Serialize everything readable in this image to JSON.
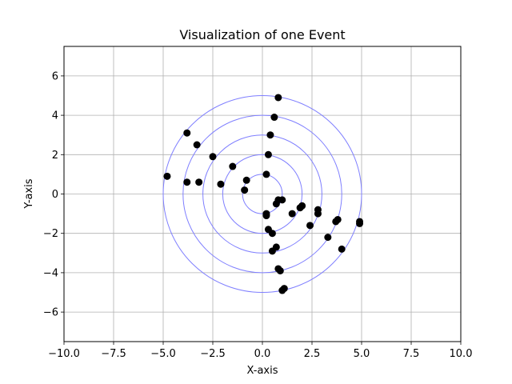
{
  "chart_data": {
    "type": "scatter",
    "title": "Visualization of one Event",
    "xlabel": "X-axis",
    "ylabel": "Y-axis",
    "xlim": [
      -10,
      10
    ],
    "ylim": [
      -7.5,
      7.5
    ],
    "xticks": [
      -10,
      -7.5,
      -5,
      -2.5,
      0,
      2.5,
      5,
      7.5,
      10
    ],
    "xtick_labels": [
      "−10.0",
      "−7.5",
      "−5.0",
      "−2.5",
      "0.0",
      "2.5",
      "5.0",
      "7.5",
      "10.0"
    ],
    "yticks": [
      -6,
      -4,
      -2,
      0,
      2,
      4,
      6
    ],
    "ytick_labels": [
      "−6",
      "−4",
      "−2",
      "0",
      "2",
      "4",
      "6"
    ],
    "grid": true,
    "circles": {
      "center": [
        0,
        0
      ],
      "radii": [
        1,
        2,
        3,
        4,
        5
      ],
      "color": "#7f7fff"
    },
    "points": {
      "color": "#000000",
      "x": [
        0.8,
        0.6,
        0.4,
        0.3,
        0.2,
        -0.8,
        -0.9,
        0.8,
        1.0,
        0.7,
        0.2,
        0.2,
        -1.5,
        -2.5,
        -2.1,
        -3.2,
        -3.8,
        -4.8,
        -3.3,
        -3.8,
        1.5,
        1.9,
        2.0,
        2.8,
        2.8,
        3.7,
        3.8,
        4.9,
        4.9,
        2.4,
        3.3,
        4.0,
        0.3,
        0.5,
        0.5,
        0.7,
        0.8,
        0.9,
        1.1,
        1.0
      ],
      "y": [
        4.9,
        3.9,
        3.0,
        2.0,
        1.0,
        0.7,
        0.2,
        -0.3,
        -0.3,
        -0.5,
        -1.0,
        -1.1,
        1.4,
        1.9,
        0.5,
        0.6,
        0.6,
        0.9,
        2.5,
        3.1,
        -1.0,
        -0.7,
        -0.6,
        -0.8,
        -1.0,
        -1.4,
        -1.3,
        -1.4,
        -1.5,
        -1.6,
        -2.2,
        -2.8,
        -1.8,
        -2.0,
        -2.9,
        -2.7,
        -3.8,
        -3.9,
        -4.8,
        -4.9
      ]
    }
  }
}
